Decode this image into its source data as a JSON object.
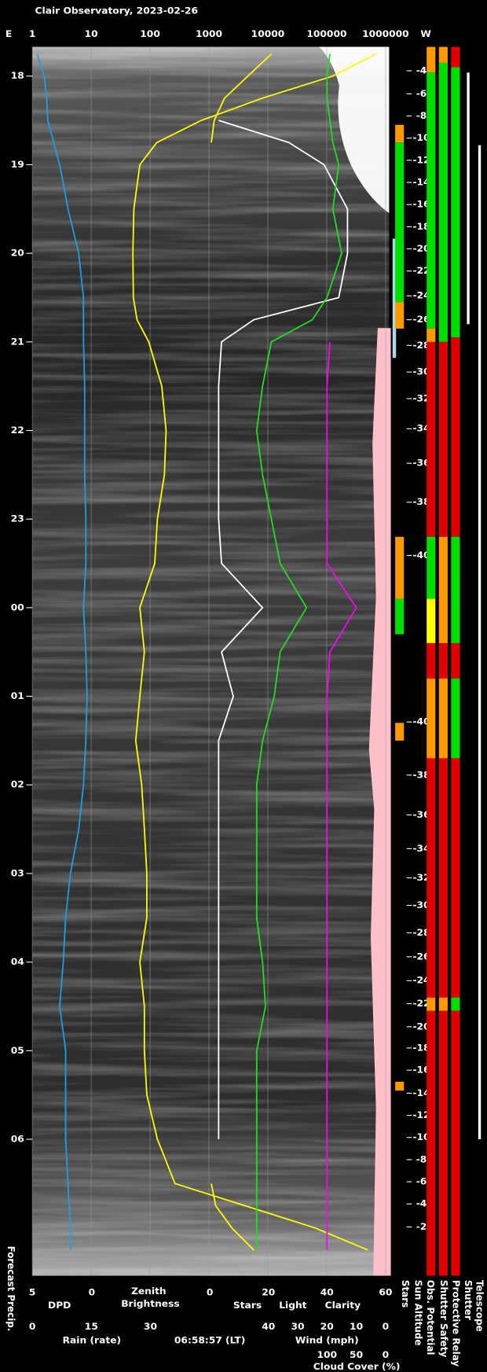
{
  "chart_data": {
    "type": "keogram",
    "title": "Clair Observatory, 2023-02-26",
    "time_label": "06:58:57 (LT)",
    "left_label": "E",
    "right_label": "W",
    "forecast_label": "Forecast Precip.",
    "xscale": "log",
    "xlim": [
      1,
      1000000
    ],
    "xticks": [
      1,
      10,
      100,
      1000,
      10000,
      100000,
      1000000
    ],
    "grid": true,
    "ylim": [
      17.67,
      31.54
    ],
    "yticks": [
      18,
      19,
      20,
      21,
      22,
      23,
      {
        "value": 24,
        "label": "00"
      },
      {
        "value": 25,
        "label": "01"
      },
      {
        "value": 26,
        "label": "02"
      },
      {
        "value": 27,
        "label": "03"
      },
      {
        "value": 28,
        "label": "04"
      },
      {
        "value": 29,
        "label": "05"
      },
      {
        "value": 30,
        "label": "06"
      }
    ],
    "x": [
      17.75,
      18,
      18.25,
      18.5,
      18.75,
      19,
      19.5,
      20,
      20.5,
      20.75,
      21,
      21.5,
      22,
      22.5,
      23,
      23.5,
      24,
      24.5,
      25,
      25.5,
      26,
      26.5,
      27,
      27.5,
      28,
      28.5,
      29,
      29.5,
      30,
      30.5,
      30.75,
      31,
      31.25
    ],
    "bottom_axes": [
      {
        "lim": [
          5,
          0
        ],
        "ticks": [
          5,
          0
        ]
      },
      {
        "lim": [
          0,
          60
        ],
        "ticks": [
          0,
          20,
          40,
          60
        ]
      },
      {
        "label": "Rain (rate)",
        "color": "#33bbee",
        "lim": [
          0,
          30
        ],
        "ticks": [
          0,
          15,
          30
        ]
      },
      {
        "label": "Wind (mph)",
        "color": "#ff8080",
        "lim": [
          40,
          0
        ],
        "ticks": [
          40,
          30,
          20,
          10,
          0
        ]
      },
      {
        "label": "Cloud Cover (%)",
        "color": "#ff00ff",
        "lim": [
          100,
          0
        ],
        "ticks": [
          100,
          50,
          0
        ]
      }
    ],
    "series": [
      {
        "name": "DPD",
        "color": "#1e9fe0",
        "axis": 0,
        "values": [
          4.6,
          4,
          3.8,
          3.7,
          3.2,
          2.7,
          2,
          1.1,
          0.7,
          0.7,
          0.7,
          0.6,
          0.6,
          0.6,
          0.5,
          0.5,
          0.7,
          0.5,
          0.4,
          0.5,
          0.7,
          1.1,
          1.8,
          2.2,
          2.4,
          2.7,
          2.2,
          2.2,
          2.2,
          2,
          1.9,
          1.8,
          1.8
        ]
      },
      {
        "name": "Zenith Brightness",
        "color": "#ffff00",
        "values": [
          690000,
          126000,
          8000,
          740,
          130,
          67,
          53,
          51,
          52,
          60,
          95,
          158,
          187,
          175,
          133,
          120,
          67,
          80,
          67,
          57,
          72,
          80,
          88,
          88,
          67,
          80,
          80,
          88,
          133,
          265,
          4100,
          63000,
          500000
        ]
      },
      {
        "name": "Stars",
        "color": "#ffffff",
        "axis": 1,
        "values": [
          null,
          null,
          null,
          3,
          27,
          39,
          47,
          47,
          44,
          15,
          4,
          3,
          3,
          3,
          3,
          4,
          18,
          4,
          8,
          3,
          3,
          3,
          3,
          3,
          3,
          3,
          3,
          3,
          3,
          null,
          null,
          null,
          null
        ]
      },
      {
        "name": "Light",
        "color": "#ffff00",
        "axis": 1,
        "values": [
          21,
          13,
          5,
          1.5,
          0.5,
          null,
          null,
          null,
          null,
          null,
          null,
          null,
          null,
          null,
          null,
          null,
          null,
          null,
          null,
          null,
          null,
          null,
          null,
          null,
          null,
          null,
          null,
          null,
          null,
          0.5,
          2,
          7.5,
          15
        ]
      },
      {
        "name": "Clarity",
        "color": "#22dd22",
        "axis": 1,
        "values": [
          41,
          40,
          40,
          41,
          42,
          44,
          42,
          45,
          40,
          35,
          21,
          18,
          16,
          18,
          21,
          24,
          33,
          24,
          22,
          18,
          16,
          16,
          16,
          16,
          18,
          19,
          16,
          16,
          16,
          16,
          16,
          16,
          16
        ]
      },
      {
        "color": "#ff00ff",
        "axis": 4,
        "values": [
          null,
          null,
          null,
          null,
          null,
          null,
          null,
          null,
          null,
          null,
          95,
          100,
          100,
          100,
          100,
          100,
          50,
          95,
          100,
          100,
          100,
          100,
          100,
          100,
          100,
          100,
          100,
          100,
          100,
          100,
          100,
          100,
          100
        ]
      }
    ],
    "sun_altitude": {
      "name": "Sun Altitude",
      "x": [
        17.94,
        18.2,
        18.45,
        18.7,
        18.95,
        19.2,
        19.45,
        19.7,
        19.95,
        20.2,
        20.48,
        20.75,
        21.04,
        21.34,
        21.64,
        21.98,
        22.37,
        22.81,
        23.41,
        25.29,
        25.89,
        26.34,
        26.72,
        27.05,
        27.36,
        27.67,
        27.94,
        28.21,
        28.47,
        28.73,
        28.97,
        29.22,
        29.48,
        29.73,
        29.98,
        30.23,
        30.48,
        30.73,
        30.99
      ],
      "values": [
        -4,
        -6,
        -8,
        -10,
        -12,
        -14,
        -16,
        -18,
        -20,
        -22,
        -24,
        -26,
        -28,
        -30,
        -32,
        -34,
        -36,
        -38,
        -40,
        -40,
        -38,
        -36,
        -34,
        -32,
        -30,
        -28,
        -26,
        -24,
        -22,
        -20,
        -18,
        -16,
        -14,
        -12,
        -10,
        -8,
        -6,
        -4,
        -2
      ]
    },
    "status": [
      {
        "name": "Stars",
        "segments": [
          {
            "from": 18.55,
            "to": 18.75,
            "color": "#ff9900"
          },
          {
            "from": 18.75,
            "to": 20.55,
            "color": "#00dd00"
          },
          {
            "from": 20.55,
            "to": 20.85,
            "color": "#ff9900"
          },
          {
            "from": 23.2,
            "to": 23.9,
            "color": "#ff9900"
          },
          {
            "from": 23.9,
            "to": 24.3,
            "color": "#00dd00"
          },
          {
            "from": 25.3,
            "to": 25.5,
            "color": "#ff9900"
          },
          {
            "from": 29.35,
            "to": 29.45,
            "color": "#ff9900"
          }
        ]
      },
      {
        "name": "Obs. Potential",
        "segments": [
          {
            "from": 17.67,
            "to": 17.96,
            "color": "#ff9900"
          },
          {
            "from": 17.96,
            "to": 20.85,
            "color": "#00dd00"
          },
          {
            "from": 20.85,
            "to": 21,
            "color": "#ff9900"
          },
          {
            "from": 21,
            "to": 23.2,
            "color": "#e00000"
          },
          {
            "from": 23.2,
            "to": 23.9,
            "color": "#00dd00"
          },
          {
            "from": 23.9,
            "to": 24.4,
            "color": "#ffff00"
          },
          {
            "from": 24.4,
            "to": 24.8,
            "color": "#e00000"
          },
          {
            "from": 24.8,
            "to": 25.7,
            "color": "#ff9900"
          },
          {
            "from": 25.7,
            "to": 28.4,
            "color": "#e00000"
          },
          {
            "from": 28.4,
            "to": 28.55,
            "color": "#ff9900"
          },
          {
            "from": 28.55,
            "to": 31.54,
            "color": "#e00000"
          }
        ]
      },
      {
        "name": "Shutter Safety",
        "segments": [
          {
            "from": 17.67,
            "to": 17.85,
            "color": "#ff9900"
          },
          {
            "from": 17.85,
            "to": 21,
            "color": "#00dd00"
          },
          {
            "from": 21,
            "to": 23.2,
            "color": "#e00000"
          },
          {
            "from": 23.2,
            "to": 24.4,
            "color": "#ff9900"
          },
          {
            "from": 24.4,
            "to": 24.8,
            "color": "#e00000"
          },
          {
            "from": 24.8,
            "to": 25.7,
            "color": "#ff9900"
          },
          {
            "from": 25.7,
            "to": 28.4,
            "color": "#e00000"
          },
          {
            "from": 28.4,
            "to": 28.55,
            "color": "#ff9900"
          },
          {
            "from": 28.55,
            "to": 31.54,
            "color": "#e00000"
          }
        ]
      },
      {
        "name": "Protective Relay",
        "segments": [
          {
            "from": 17.67,
            "to": 17.9,
            "color": "#e00000"
          },
          {
            "from": 17.9,
            "to": 20.95,
            "color": "#00dd00"
          },
          {
            "from": 20.95,
            "to": 23.2,
            "color": "#e00000"
          },
          {
            "from": 23.2,
            "to": 24.4,
            "color": "#00dd00"
          },
          {
            "from": 24.4,
            "to": 24.8,
            "color": "#e00000"
          },
          {
            "from": 24.8,
            "to": 25.7,
            "color": "#00dd00"
          },
          {
            "from": 25.7,
            "to": 28.4,
            "color": "#e00000"
          },
          {
            "from": 28.4,
            "to": 28.55,
            "color": "#00dd00"
          },
          {
            "from": 28.55,
            "to": 31.54,
            "color": "#e00000"
          }
        ]
      },
      {
        "name": "Shutter",
        "segments": [
          {
            "from": 17.96,
            "to": 20.8,
            "color": "#ffffff"
          }
        ]
      },
      {
        "name": "Telescope",
        "segments": [
          {
            "from": 18.78,
            "to": 30,
            "color": "#ffffff"
          }
        ]
      }
    ]
  }
}
